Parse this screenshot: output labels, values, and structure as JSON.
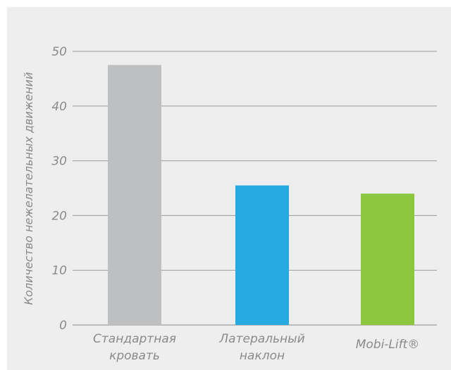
{
  "chart_data": {
    "type": "bar",
    "categories": [
      [
        "Стандартная",
        "кровать"
      ],
      [
        "Латеральный",
        "наклон"
      ],
      [
        "Mobi-Lift®"
      ]
    ],
    "values": [
      47.5,
      25.5,
      24
    ],
    "colors": [
      "#bebfc1",
      "#27a9e1",
      "#8dc63f"
    ],
    "ylabel": "Количество нежелательных движений",
    "yticks": [
      "0",
      "10",
      "20",
      "30",
      "40",
      "50"
    ],
    "ylim": [
      0,
      50
    ],
    "grid": true
  }
}
